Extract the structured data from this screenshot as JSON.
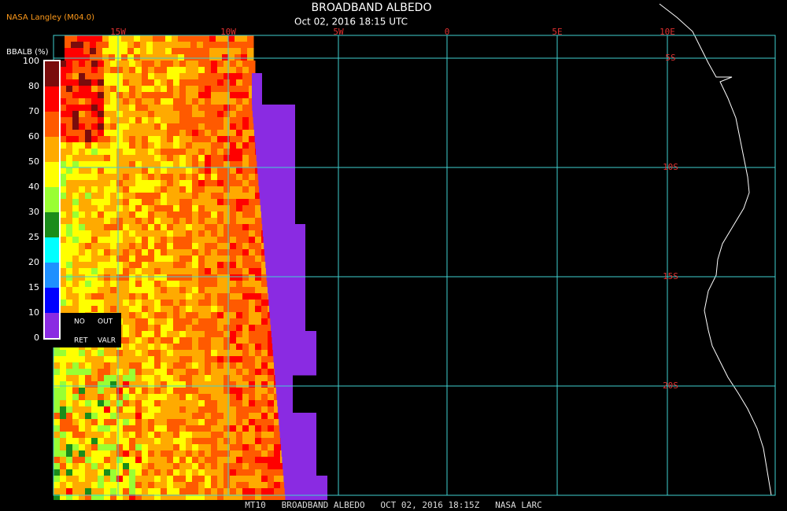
{
  "header": {
    "source": "NASA Langley (M04.0)",
    "title": "BROADBAND ALBEDO",
    "datetime": "Oct 02, 2016 18:15 UTC"
  },
  "colorbar": {
    "label": "BBALB (%)",
    "ticks": [
      100,
      80,
      70,
      60,
      50,
      40,
      30,
      25,
      20,
      15,
      10,
      0
    ],
    "colors": [
      "#7a0c0c",
      "#ff0000",
      "#ff5a00",
      "#ffaa00",
      "#ffff00",
      "#99ff33",
      "#1a8c1a",
      "#00ffff",
      "#1e90ff",
      "#0000ff",
      "#8a2be2"
    ],
    "no_data": [
      "NO",
      "OUT",
      "RET",
      "VALR"
    ]
  },
  "grid": {
    "lon_labels": [
      "15W",
      "10W",
      "5W",
      "0",
      "5E",
      "10E"
    ],
    "lat_labels": [
      "5S",
      "10S",
      "15S",
      "20S"
    ]
  },
  "footer": "MT10   BROADBAND ALBEDO   OCT 02, 2016 18:15Z   NASA LARC"
}
